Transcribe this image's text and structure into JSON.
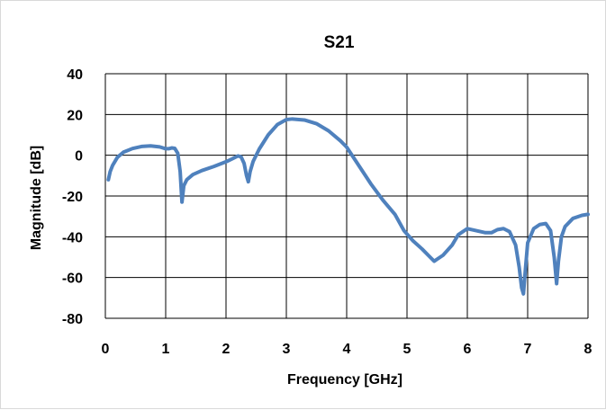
{
  "chart_data": {
    "type": "line",
    "title": "S21",
    "xlabel": "Frequency [GHz]",
    "ylabel": "Magnitude [dB]",
    "xlim": [
      0,
      8
    ],
    "ylim": [
      -80,
      40
    ],
    "xticks": [
      0,
      1,
      2,
      3,
      4,
      5,
      6,
      7,
      8
    ],
    "yticks": [
      40,
      20,
      0,
      -20,
      -40,
      -60,
      -80
    ],
    "x_tick_labels": [
      "0",
      "1",
      "2",
      "3",
      "4",
      "5",
      "6",
      "7",
      "8"
    ],
    "y_tick_labels": [
      "40",
      "20",
      "0",
      "-20",
      "-40",
      "-60",
      "-80"
    ],
    "grid": true,
    "legend": false,
    "series": [
      {
        "color": "#4f81bd",
        "points": [
          [
            0.05,
            -12
          ],
          [
            0.08,
            -8
          ],
          [
            0.12,
            -5
          ],
          [
            0.2,
            -1
          ],
          [
            0.3,
            1.5
          ],
          [
            0.45,
            3.3
          ],
          [
            0.6,
            4.3
          ],
          [
            0.75,
            4.6
          ],
          [
            0.9,
            4.1
          ],
          [
            1.0,
            3.2
          ],
          [
            1.05,
            3.2
          ],
          [
            1.1,
            3.6
          ],
          [
            1.15,
            3.4
          ],
          [
            1.2,
            1
          ],
          [
            1.24,
            -8
          ],
          [
            1.27,
            -23
          ],
          [
            1.3,
            -15
          ],
          [
            1.35,
            -12
          ],
          [
            1.45,
            -9.5
          ],
          [
            1.6,
            -7.5
          ],
          [
            1.8,
            -5.5
          ],
          [
            2.0,
            -3.2
          ],
          [
            2.1,
            -1.8
          ],
          [
            2.2,
            -0.3
          ],
          [
            2.25,
            -0.8
          ],
          [
            2.3,
            -4
          ],
          [
            2.34,
            -10
          ],
          [
            2.37,
            -13
          ],
          [
            2.4,
            -8
          ],
          [
            2.45,
            -3
          ],
          [
            2.55,
            3
          ],
          [
            2.7,
            10
          ],
          [
            2.85,
            15
          ],
          [
            3.0,
            17.5
          ],
          [
            3.1,
            17.8
          ],
          [
            3.3,
            17.3
          ],
          [
            3.5,
            15.5
          ],
          [
            3.7,
            12
          ],
          [
            3.9,
            7
          ],
          [
            4.0,
            4
          ],
          [
            4.2,
            -5
          ],
          [
            4.4,
            -14
          ],
          [
            4.6,
            -22
          ],
          [
            4.8,
            -29
          ],
          [
            4.95,
            -37
          ],
          [
            5.1,
            -42
          ],
          [
            5.25,
            -46
          ],
          [
            5.35,
            -49
          ],
          [
            5.45,
            -52
          ],
          [
            5.5,
            -51
          ],
          [
            5.6,
            -49
          ],
          [
            5.75,
            -44
          ],
          [
            5.85,
            -39
          ],
          [
            6.0,
            -36
          ],
          [
            6.15,
            -37
          ],
          [
            6.3,
            -38
          ],
          [
            6.4,
            -38
          ],
          [
            6.5,
            -36.5
          ],
          [
            6.6,
            -36
          ],
          [
            6.7,
            -37.5
          ],
          [
            6.8,
            -44
          ],
          [
            6.86,
            -55
          ],
          [
            6.9,
            -65
          ],
          [
            6.93,
            -68
          ],
          [
            6.96,
            -57
          ],
          [
            7.0,
            -43
          ],
          [
            7.1,
            -36
          ],
          [
            7.2,
            -34
          ],
          [
            7.3,
            -33.5
          ],
          [
            7.38,
            -37
          ],
          [
            7.44,
            -50
          ],
          [
            7.48,
            -63
          ],
          [
            7.51,
            -52
          ],
          [
            7.56,
            -40
          ],
          [
            7.62,
            -35
          ],
          [
            7.75,
            -31
          ],
          [
            7.9,
            -29.5
          ],
          [
            8.0,
            -29
          ]
        ]
      }
    ]
  }
}
